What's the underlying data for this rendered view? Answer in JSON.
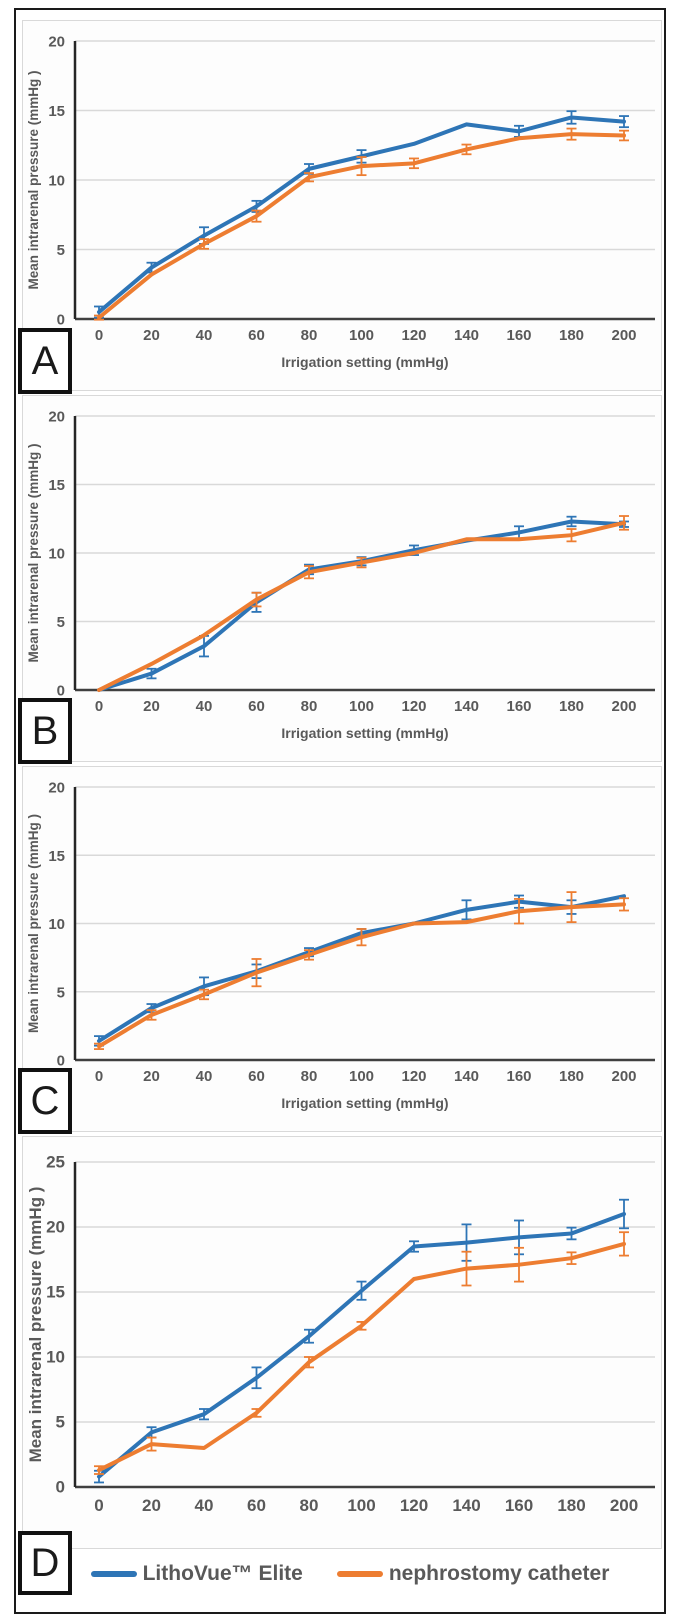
{
  "figure": {
    "panels": [
      {
        "label": "A"
      },
      {
        "label": "B"
      },
      {
        "label": "C"
      },
      {
        "label": "D"
      }
    ],
    "legend": {
      "items": [
        {
          "label": "LithoVue™ Elite",
          "color": "#2E75B6"
        },
        {
          "label": "nephrostomy catheter",
          "color": "#ED7D31"
        }
      ]
    },
    "colors": {
      "series_blue": "#2E75B6",
      "series_orange": "#ED7D31",
      "gridline": "#D9D9D9",
      "axis_line": "#404040",
      "tick_text": "#595959"
    }
  },
  "chart_data": [
    {
      "type": "line",
      "panel_label": "A",
      "title": "",
      "xlabel": "Irrigation setting (mmHg)",
      "ylabel": "Mean intrarenal pressure (mmHg )",
      "x": [
        0,
        20,
        40,
        60,
        80,
        100,
        120,
        140,
        160,
        180,
        200
      ],
      "ylim": [
        0,
        20
      ],
      "yticks": [
        0,
        5,
        10,
        15,
        20
      ],
      "grid": true,
      "legend_position": "none",
      "series": [
        {
          "name": "LithoVue™ Elite",
          "color": "#2E75B6",
          "values": [
            0.5,
            3.7,
            6.0,
            8.1,
            10.8,
            11.7,
            12.6,
            14.0,
            13.5,
            14.5,
            14.2
          ],
          "errors": [
            0.4,
            0.35,
            0.6,
            0.4,
            0.35,
            0.45,
            0,
            0,
            0.4,
            0.45,
            0.4
          ]
        },
        {
          "name": "nephrostomy catheter",
          "color": "#ED7D31",
          "values": [
            0.1,
            3.2,
            5.4,
            7.4,
            10.2,
            11.0,
            11.2,
            12.2,
            13.0,
            13.3,
            13.2
          ],
          "errors": [
            0.15,
            0,
            0.35,
            0.4,
            0.3,
            0.65,
            0.35,
            0.35,
            0,
            0.4,
            0.35
          ]
        }
      ]
    },
    {
      "type": "line",
      "panel_label": "B",
      "title": "",
      "xlabel": "Irrigation setting (mmHg)",
      "ylabel": "Mean intrarenal pressure (mmHg )",
      "x": [
        0,
        20,
        40,
        60,
        80,
        100,
        120,
        140,
        160,
        180,
        200
      ],
      "ylim": [
        0,
        20
      ],
      "yticks": [
        0,
        5,
        10,
        15,
        20
      ],
      "grid": true,
      "legend_position": "none",
      "series": [
        {
          "name": "LithoVue™ Elite",
          "color": "#2E75B6",
          "values": [
            0.0,
            1.2,
            3.2,
            6.4,
            8.8,
            9.4,
            10.2,
            10.9,
            11.5,
            12.3,
            12.1
          ],
          "errors": [
            0,
            0.35,
            0.75,
            0.7,
            0.35,
            0.3,
            0.35,
            0,
            0.45,
            0.35,
            0.2
          ]
        },
        {
          "name": "nephrostomy catheter",
          "color": "#ED7D31",
          "values": [
            0.0,
            1.9,
            4.0,
            6.6,
            8.6,
            9.3,
            10.0,
            11.0,
            11.0,
            11.3,
            12.2
          ],
          "errors": [
            0,
            0,
            0,
            0.5,
            0.45,
            0.35,
            0,
            0,
            0,
            0.45,
            0.5
          ]
        }
      ]
    },
    {
      "type": "line",
      "panel_label": "C",
      "title": "",
      "xlabel": "Irrigation setting (mmHg)",
      "ylabel": "Mean intrarenal pressure (mmHg )",
      "x": [
        0,
        20,
        40,
        60,
        80,
        100,
        120,
        140,
        160,
        180,
        200
      ],
      "ylim": [
        0,
        20
      ],
      "yticks": [
        0,
        5,
        10,
        15,
        20
      ],
      "grid": true,
      "legend_position": "none",
      "series": [
        {
          "name": "LithoVue™ Elite",
          "color": "#2E75B6",
          "values": [
            1.4,
            3.8,
            5.4,
            6.5,
            7.9,
            9.3,
            10.0,
            11.0,
            11.6,
            11.2,
            12.0
          ],
          "errors": [
            0.35,
            0.3,
            0.65,
            0.5,
            0.3,
            0.3,
            0,
            0.7,
            0.45,
            0.5,
            0
          ]
        },
        {
          "name": "nephrostomy catheter",
          "color": "#ED7D31",
          "values": [
            1.0,
            3.3,
            4.8,
            6.4,
            7.7,
            9.0,
            10.0,
            10.1,
            10.9,
            11.2,
            11.4
          ],
          "errors": [
            0.2,
            0.35,
            0.35,
            1.0,
            0.35,
            0.6,
            0,
            0,
            0.9,
            1.1,
            0.45
          ]
        }
      ]
    },
    {
      "type": "line",
      "panel_label": "D",
      "title": "",
      "xlabel": "",
      "ylabel": "Mean intrarenal pressure (mmHg )",
      "x": [
        0,
        20,
        40,
        60,
        80,
        100,
        120,
        140,
        160,
        180,
        200
      ],
      "ylim": [
        0,
        25
      ],
      "yticks": [
        0,
        5,
        10,
        15,
        20,
        25
      ],
      "grid": true,
      "legend_position": "bottom",
      "series": [
        {
          "name": "LithoVue™ Elite",
          "color": "#2E75B6",
          "values": [
            0.8,
            4.2,
            5.6,
            8.4,
            11.6,
            15.1,
            18.5,
            18.8,
            19.2,
            19.5,
            21.0
          ],
          "errors": [
            0.45,
            0.4,
            0.4,
            0.8,
            0.5,
            0.7,
            0.4,
            1.4,
            1.3,
            0.45,
            1.1
          ]
        },
        {
          "name": "nephrostomy catheter",
          "color": "#ED7D31",
          "values": [
            1.3,
            3.3,
            3.0,
            5.7,
            9.6,
            12.4,
            16.0,
            16.8,
            17.1,
            17.6,
            18.7
          ],
          "errors": [
            0.3,
            0.5,
            0,
            0.3,
            0.4,
            0.3,
            0,
            1.3,
            1.3,
            0.45,
            0.9
          ]
        }
      ]
    }
  ]
}
